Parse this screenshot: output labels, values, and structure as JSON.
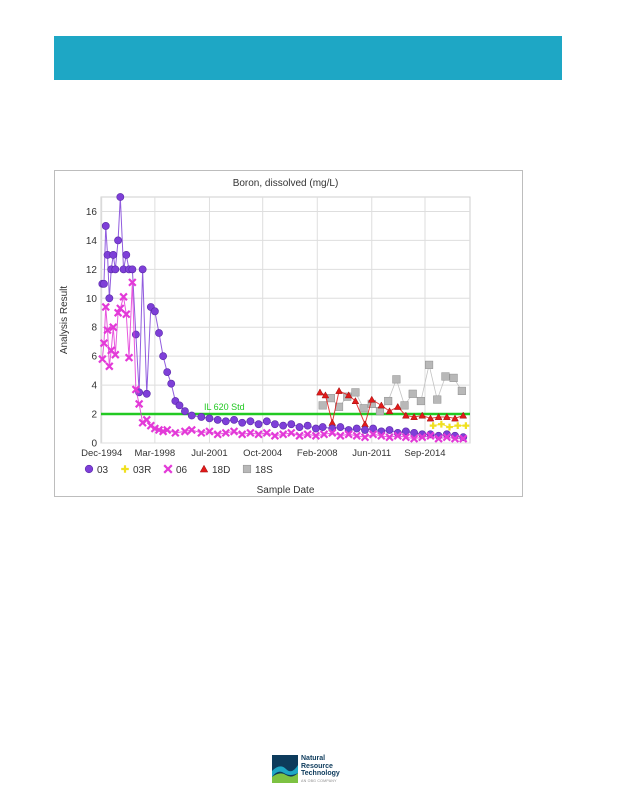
{
  "logo": {
    "line1": "Natural",
    "line2": "Resource",
    "line3": "Technology",
    "line4": "AN OBG COMPANY",
    "colors": {
      "navy": "#0d3b5c",
      "teal": "#1ea7c5",
      "green": "#7dc242"
    }
  },
  "banner": {
    "color": "#1ea7c5"
  },
  "chart_data": {
    "type": "line",
    "title": "Boron, dissolved (mg/L)",
    "xlabel": "Sample Date",
    "ylabel": "Analysis Result",
    "ylim": [
      0,
      17
    ],
    "yticks": [
      0,
      2,
      4,
      6,
      8,
      10,
      12,
      14,
      16
    ],
    "xlim": [
      "1994-11-15",
      "2017-06-01"
    ],
    "xticks": [
      {
        "date": "1994-12-01",
        "label": "Dec-1994"
      },
      {
        "date": "1998-03-01",
        "label": "Mar-1998"
      },
      {
        "date": "2001-07-01",
        "label": "Jul-2001"
      },
      {
        "date": "2004-10-01",
        "label": "Oct-2004"
      },
      {
        "date": "2008-02-01",
        "label": "Feb-2008"
      },
      {
        "date": "2011-06-01",
        "label": "Jun-2011"
      },
      {
        "date": "2014-09-01",
        "label": "Sep-2014"
      }
    ],
    "grid": true,
    "legend_position": "bottom-left",
    "threshold": {
      "label": "IL 620 Std",
      "value": 2.0,
      "color": "#22c922"
    },
    "series": [
      {
        "name": "03",
        "marker": "circle",
        "color": "#7e3fd8",
        "points": [
          [
            "1994-12-15",
            11.0
          ],
          [
            "1995-01-20",
            11.0
          ],
          [
            "1995-03-01",
            15.0
          ],
          [
            "1995-04-10",
            13.0
          ],
          [
            "1995-05-20",
            10.0
          ],
          [
            "1995-07-01",
            12.0
          ],
          [
            "1995-08-15",
            13.0
          ],
          [
            "1995-10-01",
            12.0
          ],
          [
            "1995-12-01",
            14.0
          ],
          [
            "1996-01-20",
            17.0
          ],
          [
            "1996-04-01",
            12.0
          ],
          [
            "1996-06-01",
            13.0
          ],
          [
            "1996-08-01",
            12.0
          ],
          [
            "1996-10-15",
            12.0
          ],
          [
            "1997-01-01",
            7.5
          ],
          [
            "1997-03-15",
            3.5
          ],
          [
            "1997-06-01",
            12.0
          ],
          [
            "1997-09-01",
            3.4
          ],
          [
            "1997-12-01",
            9.4
          ],
          [
            "1998-03-01",
            9.1
          ],
          [
            "1998-06-01",
            7.6
          ],
          [
            "1998-09-01",
            6.0
          ],
          [
            "1998-12-01",
            4.9
          ],
          [
            "1999-03-01",
            4.1
          ],
          [
            "1999-06-01",
            2.9
          ],
          [
            "1999-09-01",
            2.6
          ],
          [
            "2000-01-01",
            2.2
          ],
          [
            "2000-06-01",
            1.9
          ],
          [
            "2001-01-01",
            1.8
          ],
          [
            "2001-07-01",
            1.7
          ],
          [
            "2002-01-01",
            1.6
          ],
          [
            "2002-07-01",
            1.5
          ],
          [
            "2003-01-01",
            1.6
          ],
          [
            "2003-07-01",
            1.4
          ],
          [
            "2004-01-01",
            1.5
          ],
          [
            "2004-07-01",
            1.3
          ],
          [
            "2005-01-01",
            1.5
          ],
          [
            "2005-07-01",
            1.3
          ],
          [
            "2006-01-01",
            1.2
          ],
          [
            "2006-07-01",
            1.3
          ],
          [
            "2007-01-01",
            1.1
          ],
          [
            "2007-07-01",
            1.2
          ],
          [
            "2008-01-01",
            1.0
          ],
          [
            "2008-06-01",
            1.1
          ],
          [
            "2009-01-01",
            1.0
          ],
          [
            "2009-07-01",
            1.1
          ],
          [
            "2010-01-01",
            0.9
          ],
          [
            "2010-07-01",
            1.0
          ],
          [
            "2011-01-01",
            0.9
          ],
          [
            "2011-07-01",
            1.0
          ],
          [
            "2012-01-01",
            0.8
          ],
          [
            "2012-07-01",
            0.9
          ],
          [
            "2013-01-01",
            0.7
          ],
          [
            "2013-07-01",
            0.8
          ],
          [
            "2014-01-01",
            0.7
          ],
          [
            "2014-07-01",
            0.6
          ],
          [
            "2015-01-01",
            0.6
          ],
          [
            "2015-07-01",
            0.5
          ],
          [
            "2016-01-01",
            0.6
          ],
          [
            "2016-07-01",
            0.5
          ],
          [
            "2017-01-01",
            0.4
          ]
        ]
      },
      {
        "name": "03R",
        "marker": "plus",
        "color": "#f0e020",
        "points": [
          [
            "2015-03-01",
            1.2
          ],
          [
            "2015-09-01",
            1.3
          ],
          [
            "2016-03-01",
            1.1
          ],
          [
            "2016-09-01",
            1.2
          ],
          [
            "2017-03-01",
            1.2
          ]
        ]
      },
      {
        "name": "06",
        "marker": "x",
        "color": "#e33ad8",
        "points": [
          [
            "1994-12-15",
            5.8
          ],
          [
            "1995-01-20",
            6.9
          ],
          [
            "1995-03-01",
            9.4
          ],
          [
            "1995-04-10",
            7.8
          ],
          [
            "1995-05-20",
            5.3
          ],
          [
            "1995-07-01",
            6.4
          ],
          [
            "1995-08-15",
            8.0
          ],
          [
            "1995-10-01",
            6.1
          ],
          [
            "1995-12-01",
            9.0
          ],
          [
            "1996-01-20",
            9.3
          ],
          [
            "1996-04-01",
            10.1
          ],
          [
            "1996-06-01",
            8.9
          ],
          [
            "1996-08-01",
            5.9
          ],
          [
            "1996-10-15",
            11.1
          ],
          [
            "1997-01-01",
            3.7
          ],
          [
            "1997-03-15",
            2.7
          ],
          [
            "1997-06-01",
            1.4
          ],
          [
            "1997-09-01",
            1.6
          ],
          [
            "1997-12-01",
            1.2
          ],
          [
            "1998-03-01",
            1.0
          ],
          [
            "1998-06-01",
            0.9
          ],
          [
            "1998-09-01",
            0.8
          ],
          [
            "1998-12-01",
            0.9
          ],
          [
            "1999-06-01",
            0.7
          ],
          [
            "2000-01-01",
            0.8
          ],
          [
            "2000-06-01",
            0.9
          ],
          [
            "2001-01-01",
            0.7
          ],
          [
            "2001-07-01",
            0.8
          ],
          [
            "2002-01-01",
            0.6
          ],
          [
            "2002-07-01",
            0.7
          ],
          [
            "2003-01-01",
            0.8
          ],
          [
            "2003-07-01",
            0.6
          ],
          [
            "2004-01-01",
            0.7
          ],
          [
            "2004-07-01",
            0.6
          ],
          [
            "2005-01-01",
            0.7
          ],
          [
            "2005-07-01",
            0.5
          ],
          [
            "2006-01-01",
            0.6
          ],
          [
            "2006-07-01",
            0.7
          ],
          [
            "2007-01-01",
            0.5
          ],
          [
            "2007-07-01",
            0.6
          ],
          [
            "2008-01-01",
            0.5
          ],
          [
            "2008-07-01",
            0.6
          ],
          [
            "2009-01-01",
            0.7
          ],
          [
            "2009-07-01",
            0.5
          ],
          [
            "2010-01-01",
            0.6
          ],
          [
            "2010-07-01",
            0.5
          ],
          [
            "2011-01-01",
            0.4
          ],
          [
            "2011-07-01",
            0.6
          ],
          [
            "2012-01-01",
            0.5
          ],
          [
            "2012-07-01",
            0.4
          ],
          [
            "2013-01-01",
            0.5
          ],
          [
            "2013-07-01",
            0.4
          ],
          [
            "2014-01-01",
            0.3
          ],
          [
            "2014-07-01",
            0.4
          ],
          [
            "2015-01-01",
            0.5
          ],
          [
            "2015-07-01",
            0.3
          ],
          [
            "2016-01-01",
            0.4
          ],
          [
            "2016-07-01",
            0.3
          ],
          [
            "2017-01-01",
            0.3
          ]
        ]
      },
      {
        "name": "18D",
        "marker": "triangle",
        "color": "#e21a1a",
        "points": [
          [
            "2008-04-01",
            3.5
          ],
          [
            "2008-08-01",
            3.3
          ],
          [
            "2009-01-01",
            1.4
          ],
          [
            "2009-06-01",
            3.6
          ],
          [
            "2010-01-01",
            3.3
          ],
          [
            "2010-06-01",
            2.9
          ],
          [
            "2011-01-01",
            1.3
          ],
          [
            "2011-06-01",
            3.0
          ],
          [
            "2012-01-01",
            2.6
          ],
          [
            "2012-07-01",
            2.2
          ],
          [
            "2013-01-01",
            2.5
          ],
          [
            "2013-07-01",
            1.9
          ],
          [
            "2014-01-01",
            1.8
          ],
          [
            "2014-07-01",
            1.9
          ],
          [
            "2015-01-01",
            1.7
          ],
          [
            "2015-07-01",
            1.8
          ],
          [
            "2016-01-01",
            1.8
          ],
          [
            "2016-07-01",
            1.7
          ],
          [
            "2017-01-01",
            1.9
          ]
        ]
      },
      {
        "name": "18S",
        "marker": "square",
        "color": "#b8b8b8",
        "points": [
          [
            "2008-06-01",
            2.6
          ],
          [
            "2008-12-01",
            3.1
          ],
          [
            "2009-06-01",
            2.5
          ],
          [
            "2009-12-01",
            3.2
          ],
          [
            "2010-06-01",
            3.5
          ],
          [
            "2010-12-01",
            2.4
          ],
          [
            "2011-06-01",
            2.7
          ],
          [
            "2011-12-01",
            2.2
          ],
          [
            "2012-06-01",
            2.9
          ],
          [
            "2012-12-01",
            4.4
          ],
          [
            "2013-06-01",
            2.6
          ],
          [
            "2013-12-01",
            3.4
          ],
          [
            "2014-06-01",
            2.9
          ],
          [
            "2014-12-01",
            5.4
          ],
          [
            "2015-06-01",
            3.0
          ],
          [
            "2015-12-01",
            4.6
          ],
          [
            "2016-06-01",
            4.5
          ],
          [
            "2016-12-01",
            3.6
          ]
        ]
      }
    ]
  }
}
